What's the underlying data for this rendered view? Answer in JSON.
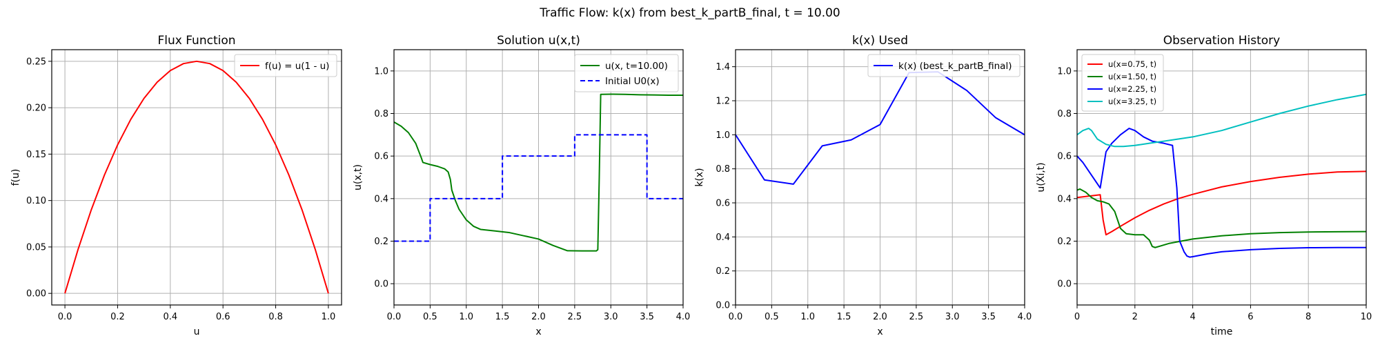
{
  "suptitle": "Traffic Flow: k(x) from best_k_partB_final, t = 10.00",
  "chart_data": [
    {
      "type": "line",
      "title": "Flux Function",
      "xlabel": "u",
      "ylabel": "f(u)",
      "xlim": [
        -0.05,
        1.05
      ],
      "ylim": [
        -0.0125,
        0.2625
      ],
      "xticks": [
        0.0,
        0.2,
        0.4,
        0.6,
        0.8,
        1.0
      ],
      "xtick_labels": [
        "0.0",
        "0.2",
        "0.4",
        "0.6",
        "0.8",
        "1.0"
      ],
      "yticks": [
        0.0,
        0.05,
        0.1,
        0.15,
        0.2,
        0.25
      ],
      "ytick_labels": [
        "0.00",
        "0.05",
        "0.10",
        "0.15",
        "0.20",
        "0.25"
      ],
      "grid": true,
      "legend": "top-right",
      "series": [
        {
          "name": "f(u) = u(1 - u)",
          "color": "#ff0000",
          "dash": "solid",
          "x": [
            0.0,
            0.05,
            0.1,
            0.15,
            0.2,
            0.25,
            0.3,
            0.35,
            0.4,
            0.45,
            0.5,
            0.55,
            0.6,
            0.65,
            0.7,
            0.75,
            0.8,
            0.85,
            0.9,
            0.95,
            1.0
          ],
          "y": [
            0.0,
            0.0475,
            0.09,
            0.1275,
            0.16,
            0.1875,
            0.21,
            0.2275,
            0.24,
            0.2475,
            0.25,
            0.2475,
            0.24,
            0.2275,
            0.21,
            0.1875,
            0.16,
            0.1275,
            0.09,
            0.0475,
            0.0
          ]
        }
      ]
    },
    {
      "type": "line",
      "title": "Solution u(x,t)",
      "xlabel": "x",
      "ylabel": "u(x,t)",
      "xlim": [
        0,
        4
      ],
      "ylim": [
        -0.1,
        1.1
      ],
      "xticks": [
        0.0,
        0.5,
        1.0,
        1.5,
        2.0,
        2.5,
        3.0,
        3.5,
        4.0
      ],
      "xtick_labels": [
        "0.0",
        "0.5",
        "1.0",
        "1.5",
        "2.0",
        "2.5",
        "3.0",
        "3.5",
        "4.0"
      ],
      "yticks": [
        0.0,
        0.2,
        0.4,
        0.6,
        0.8,
        1.0
      ],
      "ytick_labels": [
        "0.0",
        "0.2",
        "0.4",
        "0.6",
        "0.8",
        "1.0"
      ],
      "grid": true,
      "legend": "top-right",
      "series": [
        {
          "name": "u(x, t=10.00)",
          "color": "#008000",
          "dash": "solid",
          "x": [
            0.0,
            0.1,
            0.2,
            0.3,
            0.38,
            0.4,
            0.5,
            0.6,
            0.7,
            0.75,
            0.78,
            0.8,
            0.85,
            0.9,
            1.0,
            1.1,
            1.2,
            1.4,
            1.6,
            1.8,
            2.0,
            2.2,
            2.4,
            2.6,
            2.8,
            2.82,
            2.84,
            2.86,
            3.0,
            3.2,
            3.4,
            3.6,
            3.8,
            4.0
          ],
          "y": [
            0.76,
            0.74,
            0.71,
            0.66,
            0.59,
            0.57,
            0.56,
            0.552,
            0.54,
            0.525,
            0.49,
            0.44,
            0.39,
            0.35,
            0.3,
            0.27,
            0.255,
            0.248,
            0.24,
            0.225,
            0.21,
            0.18,
            0.155,
            0.154,
            0.154,
            0.16,
            0.5,
            0.89,
            0.891,
            0.89,
            0.888,
            0.887,
            0.886,
            0.886
          ]
        },
        {
          "name": "Initial U0(x)",
          "color": "#0000ff",
          "dash": "dashed",
          "x": [
            0.0,
            0.5,
            0.5,
            1.5,
            1.5,
            2.5,
            2.5,
            3.5,
            3.5,
            4.0
          ],
          "y": [
            0.2,
            0.2,
            0.4,
            0.4,
            0.6,
            0.6,
            0.7,
            0.7,
            0.4,
            0.4
          ]
        }
      ]
    },
    {
      "type": "line",
      "title": "k(x) Used",
      "xlabel": "x",
      "ylabel": "k(x)",
      "xlim": [
        0,
        4
      ],
      "ylim": [
        0,
        1.5
      ],
      "xticks": [
        0.0,
        0.5,
        1.0,
        1.5,
        2.0,
        2.5,
        3.0,
        3.5,
        4.0
      ],
      "xtick_labels": [
        "0.0",
        "0.5",
        "1.0",
        "1.5",
        "2.0",
        "2.5",
        "3.0",
        "3.5",
        "4.0"
      ],
      "yticks": [
        0.0,
        0.2,
        0.4,
        0.6,
        0.8,
        1.0,
        1.2,
        1.4
      ],
      "ytick_labels": [
        "0.0",
        "0.2",
        "0.4",
        "0.6",
        "0.8",
        "1.0",
        "1.2",
        "1.4"
      ],
      "grid": true,
      "legend": "top-right",
      "series": [
        {
          "name": "k(x) (best_k_partB_final)",
          "color": "#0000ff",
          "dash": "solid",
          "x": [
            0.0,
            0.4,
            0.8,
            1.2,
            1.6,
            2.0,
            2.4,
            2.8,
            3.2,
            3.6,
            4.0
          ],
          "y": [
            1.0,
            0.735,
            0.71,
            0.935,
            0.97,
            1.06,
            1.365,
            1.37,
            1.26,
            1.1,
            1.0
          ]
        }
      ]
    },
    {
      "type": "line",
      "title": "Observation History",
      "xlabel": "time",
      "ylabel": "u(Xi,t)",
      "xlim": [
        0,
        10
      ],
      "ylim": [
        -0.1,
        1.1
      ],
      "xticks": [
        0,
        2,
        4,
        6,
        8,
        10
      ],
      "xtick_labels": [
        "0",
        "2",
        "4",
        "6",
        "8",
        "10"
      ],
      "yticks": [
        0.0,
        0.2,
        0.4,
        0.6,
        0.8,
        1.0
      ],
      "ytick_labels": [
        "0.0",
        "0.2",
        "0.4",
        "0.6",
        "0.8",
        "1.0"
      ],
      "grid": true,
      "legend": "top-left",
      "legend_small": true,
      "series": [
        {
          "name": "u(x=0.75, t)",
          "color": "#ff0000",
          "dash": "solid",
          "x": [
            0.0,
            0.3,
            0.6,
            0.8,
            0.9,
            1.0,
            1.2,
            1.5,
            2.0,
            2.5,
            3.0,
            3.5,
            4.0,
            5.0,
            6.0,
            7.0,
            8.0,
            9.0,
            10.0
          ],
          "y": [
            0.405,
            0.41,
            0.415,
            0.418,
            0.3,
            0.23,
            0.245,
            0.27,
            0.31,
            0.345,
            0.375,
            0.4,
            0.42,
            0.455,
            0.48,
            0.5,
            0.515,
            0.525,
            0.528
          ]
        },
        {
          "name": "u(x=1.50, t)",
          "color": "#008000",
          "dash": "solid",
          "x": [
            0.0,
            0.1,
            0.3,
            0.5,
            0.7,
            0.9,
            1.1,
            1.3,
            1.5,
            1.7,
            2.0,
            2.3,
            2.5,
            2.6,
            2.7,
            2.9,
            3.2,
            3.6,
            4.0,
            5.0,
            6.0,
            7.0,
            8.0,
            9.0,
            10.0
          ],
          "y": [
            0.44,
            0.445,
            0.43,
            0.405,
            0.39,
            0.385,
            0.375,
            0.34,
            0.26,
            0.235,
            0.23,
            0.23,
            0.205,
            0.175,
            0.17,
            0.178,
            0.19,
            0.2,
            0.21,
            0.225,
            0.235,
            0.24,
            0.243,
            0.244,
            0.245
          ]
        },
        {
          "name": "u(x=2.25, t)",
          "color": "#0000ff",
          "dash": "solid",
          "x": [
            0.0,
            0.2,
            0.5,
            0.8,
            1.0,
            1.2,
            1.5,
            1.8,
            2.0,
            2.3,
            2.6,
            3.0,
            3.3,
            3.45,
            3.55,
            3.7,
            3.8,
            3.9,
            4.0,
            4.5,
            5.0,
            6.0,
            7.0,
            8.0,
            9.0,
            10.0
          ],
          "y": [
            0.6,
            0.57,
            0.51,
            0.45,
            0.62,
            0.66,
            0.7,
            0.73,
            0.72,
            0.69,
            0.67,
            0.66,
            0.65,
            0.45,
            0.2,
            0.15,
            0.13,
            0.125,
            0.127,
            0.14,
            0.15,
            0.16,
            0.166,
            0.169,
            0.17,
            0.17
          ]
        },
        {
          "name": "u(x=3.25, t)",
          "color": "#00bfbf",
          "dash": "solid",
          "x": [
            0.0,
            0.2,
            0.4,
            0.5,
            0.7,
            1.0,
            1.3,
            1.6,
            2.0,
            2.5,
            3.0,
            3.5,
            4.0,
            5.0,
            6.0,
            7.0,
            8.0,
            9.0,
            10.0
          ],
          "y": [
            0.7,
            0.72,
            0.73,
            0.72,
            0.68,
            0.655,
            0.645,
            0.645,
            0.65,
            0.66,
            0.67,
            0.68,
            0.69,
            0.72,
            0.76,
            0.8,
            0.835,
            0.865,
            0.89
          ]
        }
      ]
    }
  ]
}
